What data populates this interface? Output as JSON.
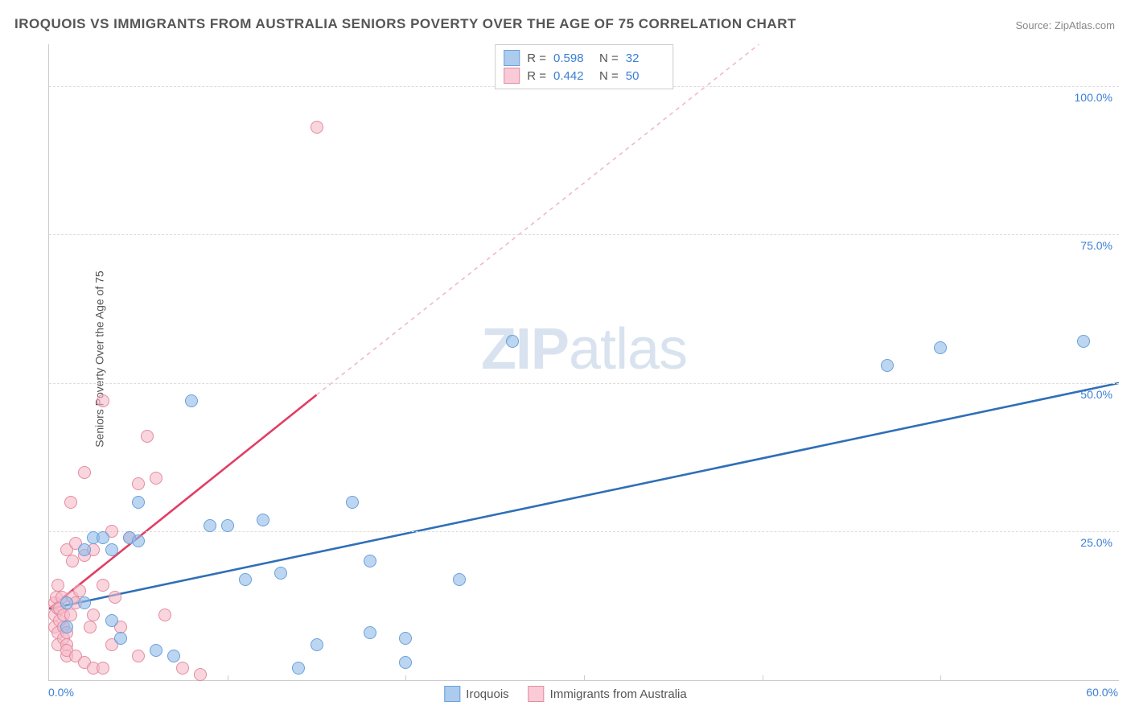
{
  "title": "IROQUOIS VS IMMIGRANTS FROM AUSTRALIA SENIORS POVERTY OVER THE AGE OF 75 CORRELATION CHART",
  "source_prefix": "Source: ",
  "source_name": "ZipAtlas.com",
  "y_axis_label": "Seniors Poverty Over the Age of 75",
  "watermark_zip": "ZIP",
  "watermark_atlas": "atlas",
  "chart": {
    "type": "scatter",
    "xlim": [
      0,
      60
    ],
    "ylim": [
      0,
      107
    ],
    "x_ticks": [
      0,
      60
    ],
    "x_tick_labels": [
      "0.0%",
      "60.0%"
    ],
    "x_minor_ticks": [
      10,
      20,
      30,
      40,
      50
    ],
    "y_ticks": [
      25,
      50,
      75,
      100
    ],
    "y_tick_labels": [
      "25.0%",
      "50.0%",
      "75.0%",
      "100.0%"
    ],
    "grid_style": "dashed",
    "grid_color": "#dddddd",
    "background_color": "#ffffff",
    "title_font_size": 17,
    "label_font_size": 14
  },
  "legend": {
    "top": [
      {
        "swatch": "blue",
        "r_label": "R =",
        "r_value": "0.598",
        "n_label": "N =",
        "n_value": "32"
      },
      {
        "swatch": "pink",
        "r_label": "R =",
        "r_value": "0.442",
        "n_label": "N =",
        "n_value": "50"
      }
    ],
    "bottom": [
      {
        "swatch": "blue",
        "label": "Iroquois"
      },
      {
        "swatch": "pink",
        "label": "Immigrants from Australia"
      }
    ]
  },
  "series": {
    "blue": {
      "name": "Iroquois",
      "fill": "rgba(144,186,231,0.6)",
      "stroke": "#6aa0dc",
      "line_color": "#2f6fb7",
      "line_width": 2.6,
      "regression": {
        "x1": 0,
        "y1": 12,
        "x2": 60,
        "y2": 50,
        "dashed_from_x": 60
      },
      "points": [
        [
          1,
          13
        ],
        [
          1,
          9
        ],
        [
          2,
          13
        ],
        [
          2,
          22
        ],
        [
          2.5,
          24
        ],
        [
          3,
          24
        ],
        [
          3.5,
          10
        ],
        [
          3.5,
          22
        ],
        [
          4,
          7
        ],
        [
          4.5,
          24
        ],
        [
          5,
          23.5
        ],
        [
          5,
          30
        ],
        [
          6,
          5
        ],
        [
          7,
          4
        ],
        [
          8,
          47
        ],
        [
          9,
          26
        ],
        [
          10,
          26
        ],
        [
          11,
          17
        ],
        [
          12,
          27
        ],
        [
          13,
          18
        ],
        [
          14,
          2
        ],
        [
          15,
          6
        ],
        [
          17,
          30
        ],
        [
          18,
          20
        ],
        [
          18,
          8
        ],
        [
          20,
          3
        ],
        [
          20,
          7
        ],
        [
          23,
          17
        ],
        [
          26,
          57
        ],
        [
          47,
          53
        ],
        [
          50,
          56
        ],
        [
          58,
          57
        ]
      ]
    },
    "pink": {
      "name": "Immigrants from Australia",
      "fill": "rgba(245,185,200,0.6)",
      "stroke": "#e38ca0",
      "line_color": "#e23d64",
      "line_width": 2.6,
      "regression": {
        "x1": 0,
        "y1": 12,
        "x2": 15,
        "y2": 48,
        "dashed_to_x": 60,
        "dashed_to_y": 155
      },
      "points": [
        [
          0.3,
          13
        ],
        [
          0.3,
          11
        ],
        [
          0.3,
          9
        ],
        [
          0.4,
          14
        ],
        [
          0.5,
          8
        ],
        [
          0.5,
          6
        ],
        [
          0.5,
          12
        ],
        [
          0.5,
          16
        ],
        [
          0.6,
          10
        ],
        [
          0.6,
          12
        ],
        [
          0.7,
          14
        ],
        [
          0.8,
          7
        ],
        [
          0.8,
          9
        ],
        [
          0.8,
          11
        ],
        [
          1,
          6
        ],
        [
          1,
          4
        ],
        [
          1,
          5
        ],
        [
          1,
          8
        ],
        [
          1,
          22
        ],
        [
          1.2,
          11
        ],
        [
          1.2,
          30
        ],
        [
          1.3,
          14
        ],
        [
          1.3,
          20
        ],
        [
          1.5,
          4
        ],
        [
          1.5,
          13
        ],
        [
          1.5,
          23
        ],
        [
          1.7,
          15
        ],
        [
          2,
          21
        ],
        [
          2,
          35
        ],
        [
          2,
          3
        ],
        [
          2.3,
          9
        ],
        [
          2.5,
          22
        ],
        [
          2.5,
          11
        ],
        [
          2.5,
          2
        ],
        [
          3,
          16
        ],
        [
          3,
          2
        ],
        [
          3,
          47
        ],
        [
          3.5,
          25
        ],
        [
          3.5,
          6
        ],
        [
          3.7,
          14
        ],
        [
          4,
          9
        ],
        [
          4.5,
          24
        ],
        [
          5,
          4
        ],
        [
          5,
          33
        ],
        [
          5.5,
          41
        ],
        [
          6,
          34
        ],
        [
          6.5,
          11
        ],
        [
          7.5,
          2
        ],
        [
          8.5,
          1
        ],
        [
          15,
          93
        ]
      ]
    }
  }
}
